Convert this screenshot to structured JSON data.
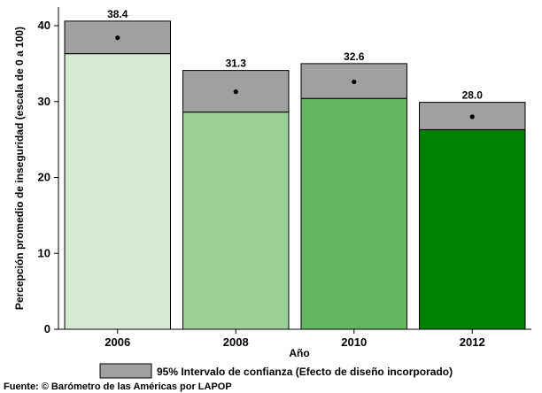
{
  "chart_data": {
    "type": "bar",
    "categories": [
      "2006",
      "2008",
      "2010",
      "2012"
    ],
    "values": [
      38.4,
      31.3,
      32.6,
      28.0
    ],
    "value_labels": [
      "38.4",
      "31.3",
      "32.6",
      "28.0"
    ],
    "ci_low": [
      36.3,
      28.6,
      30.4,
      26.3
    ],
    "ci_high": [
      40.6,
      34.1,
      35.0,
      29.9
    ],
    "colors": [
      "#d4ebd2",
      "#9ccf96",
      "#63b560",
      "#008000"
    ],
    "ci_color": "#a0a0a0",
    "xlabel": "Año",
    "ylabel": "Percepción promedio de inseguridad (escala de 0 a 100)",
    "ylim": [
      0,
      40
    ],
    "yticks": [
      0,
      10,
      20,
      30,
      40
    ],
    "legend": {
      "label": "95% Intervalo de confianza (Efecto de diseño incorporado)",
      "placement": "bottom"
    },
    "source": "Fuente: © Barómetro de las Américas por LAPOP"
  }
}
